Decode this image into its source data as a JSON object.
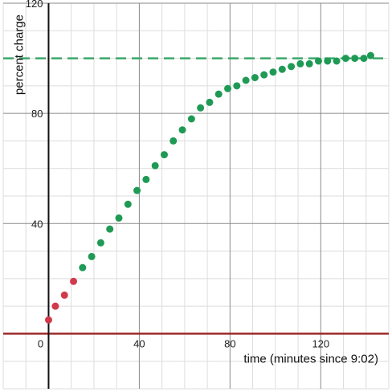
{
  "chart_data": {
    "type": "scatter",
    "title": "",
    "xlabel": "time (minutes since 9:02)",
    "ylabel": "percent charge",
    "xlim": [
      -20,
      150
    ],
    "ylim": [
      -20,
      120
    ],
    "x_ticks": [
      0,
      40,
      80,
      120
    ],
    "y_ticks": [
      40,
      80,
      120
    ],
    "x_tick_labels": [
      "0",
      "40",
      "80",
      "120"
    ],
    "y_tick_labels": [
      "40",
      "80",
      "120"
    ],
    "grid": true,
    "grid_minor_step": 10,
    "grid_major_step": 40,
    "reference_lines": [
      {
        "orientation": "horizontal",
        "y": 100,
        "style": "dashed",
        "color": "#3aa86b"
      },
      {
        "orientation": "horizontal",
        "y": 0,
        "style": "solid",
        "color": "#9b2a2a"
      }
    ],
    "series": [
      {
        "color": "#d13a4a",
        "points": [
          [
            0,
            5
          ],
          [
            3,
            10
          ],
          [
            7,
            14
          ],
          [
            11,
            19
          ]
        ]
      },
      {
        "color": "#1f9a55",
        "points": [
          [
            15,
            24
          ],
          [
            19,
            28
          ],
          [
            23,
            33
          ],
          [
            27,
            38
          ],
          [
            31,
            42
          ],
          [
            35,
            47
          ],
          [
            39,
            52
          ],
          [
            43,
            56
          ],
          [
            47,
            61
          ],
          [
            51,
            65
          ],
          [
            55,
            70
          ],
          [
            59,
            74
          ],
          [
            63,
            78
          ],
          [
            67,
            82
          ],
          [
            71,
            84
          ],
          [
            75,
            87
          ],
          [
            79,
            89
          ],
          [
            83,
            90
          ],
          [
            87,
            92
          ],
          [
            91,
            93
          ],
          [
            95,
            94
          ],
          [
            99,
            95
          ],
          [
            103,
            96
          ],
          [
            107,
            97
          ],
          [
            111,
            98
          ],
          [
            115,
            98
          ],
          [
            119,
            99
          ],
          [
            123,
            99
          ],
          [
            127,
            99
          ],
          [
            131,
            100
          ],
          [
            135,
            100
          ],
          [
            139,
            100
          ],
          [
            142,
            101
          ]
        ]
      }
    ]
  }
}
